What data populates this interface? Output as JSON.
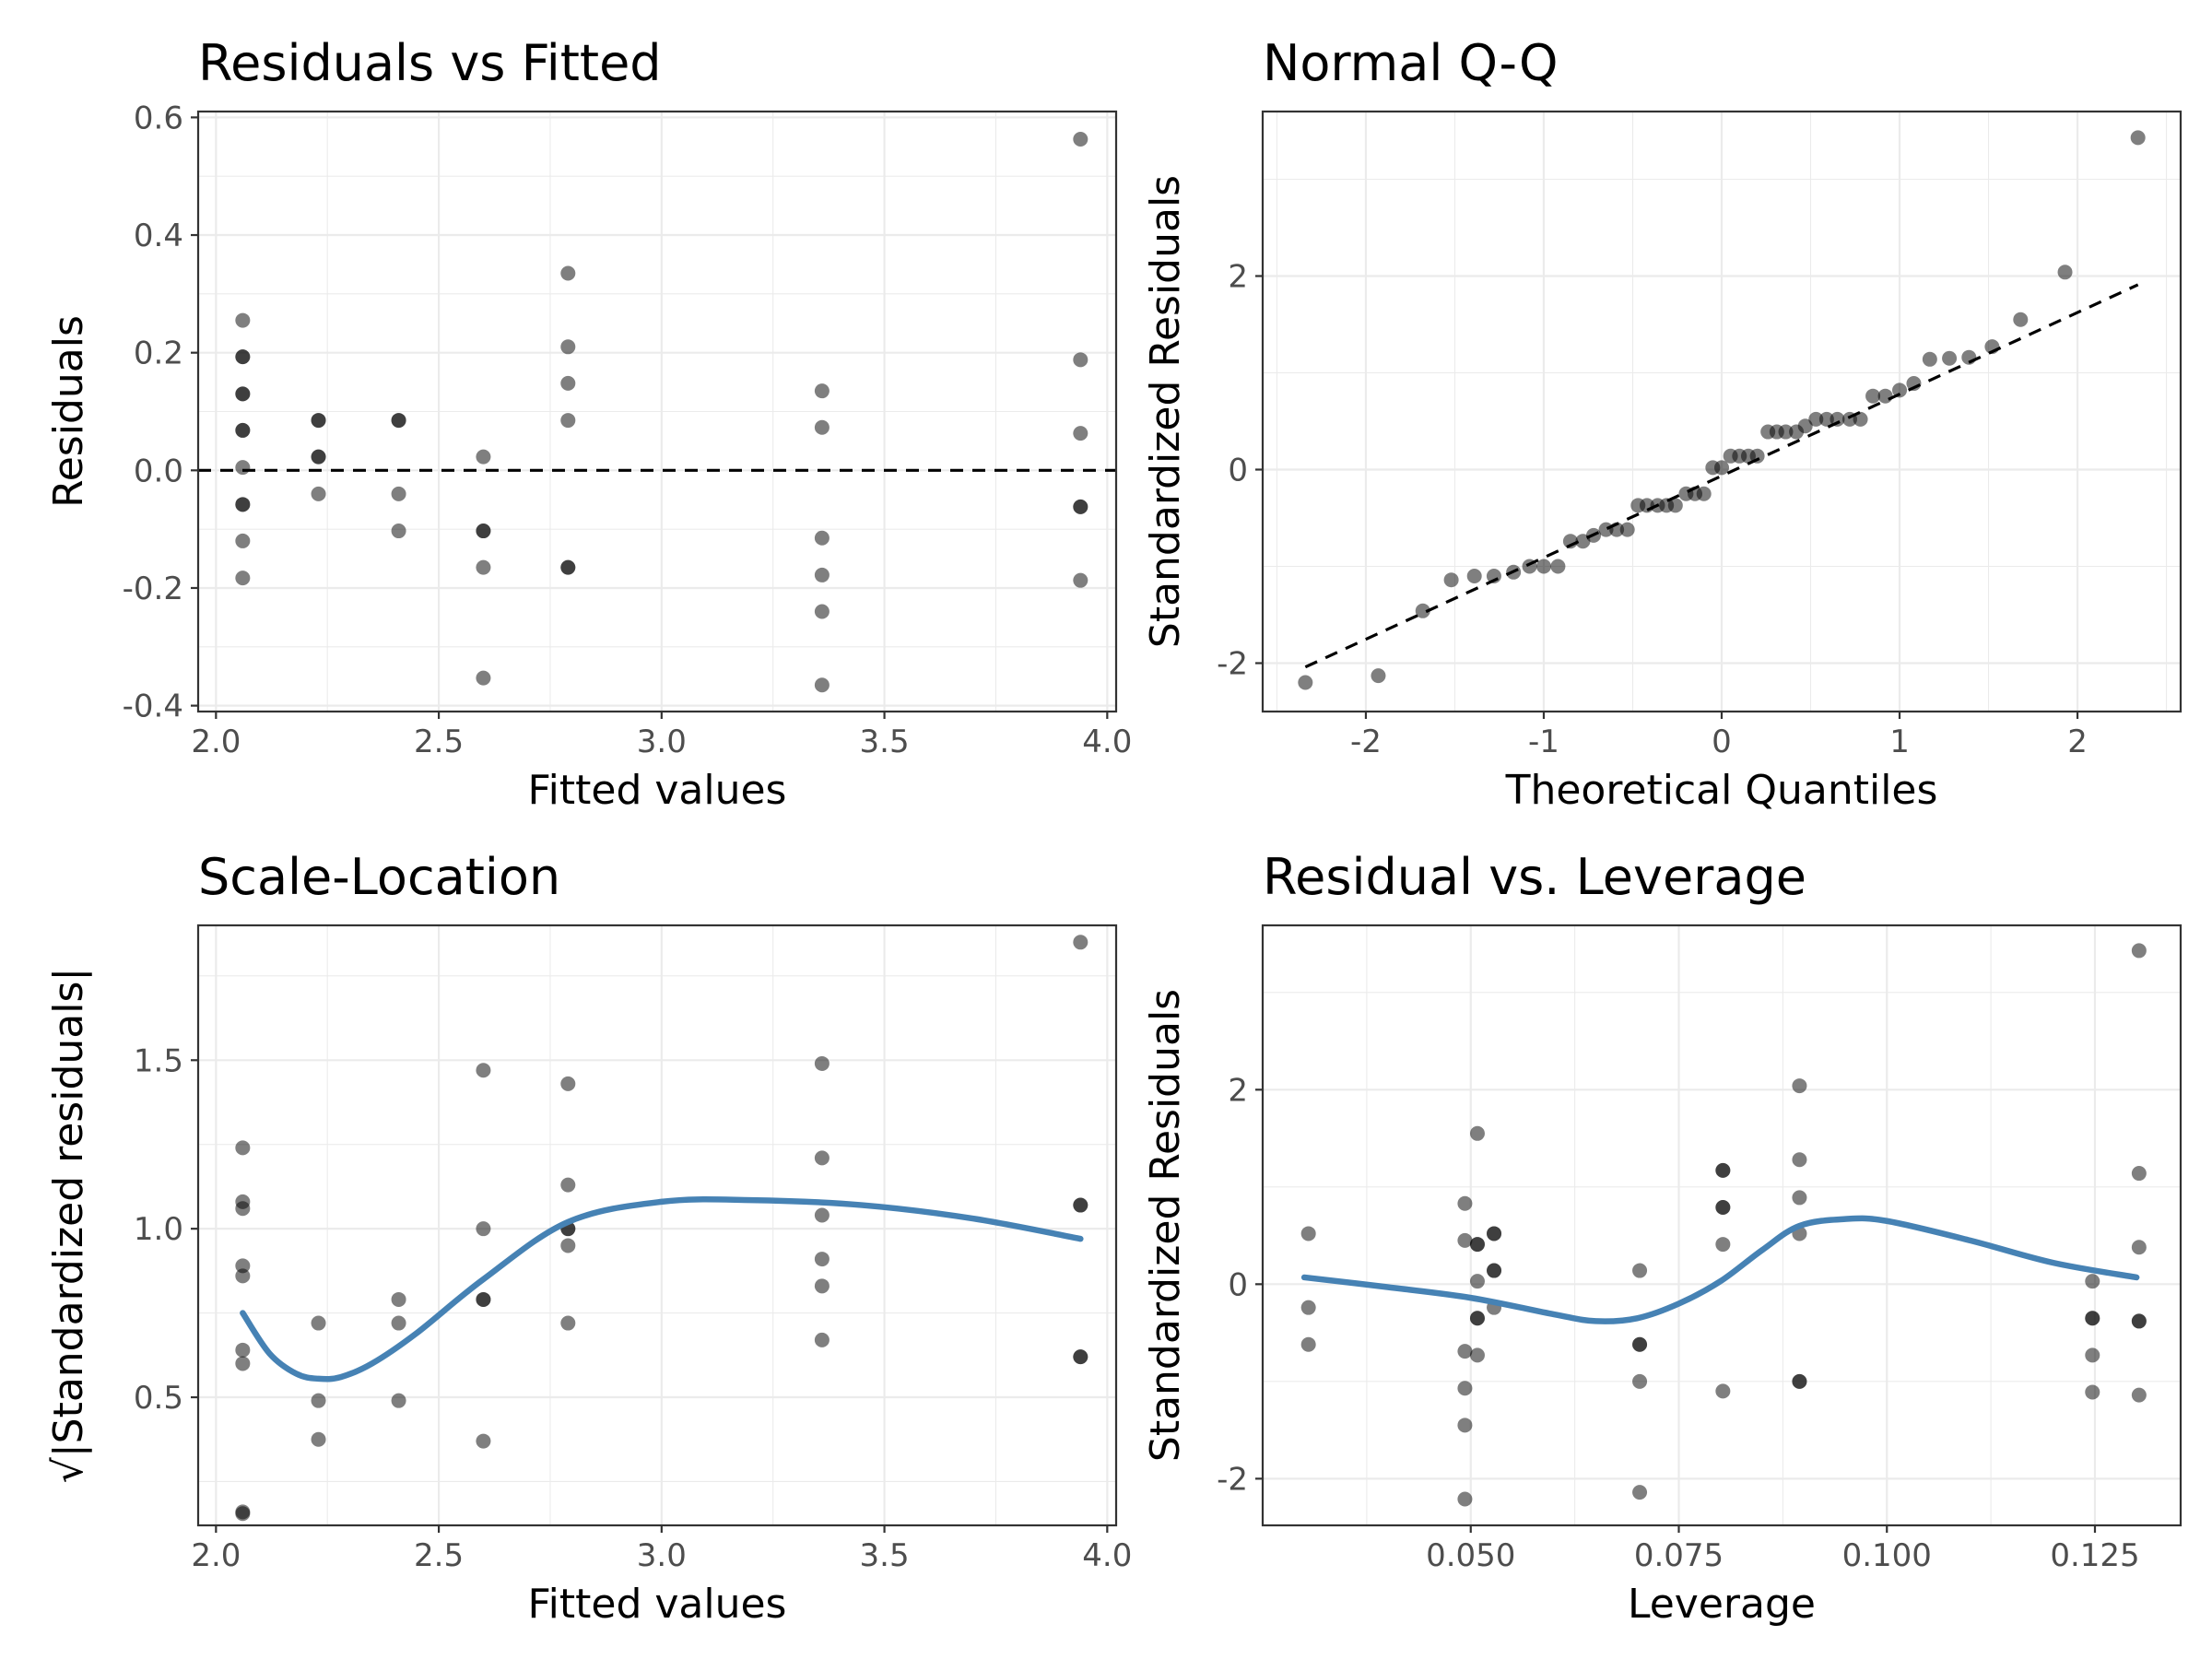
{
  "chart_data": [
    {
      "type": "scatter",
      "title": "Residuals vs Fitted",
      "xlabel": "Fitted values",
      "ylabel": "Residuals",
      "xlim": [
        1.96,
        4.02
      ],
      "ylim": [
        -0.41,
        0.61
      ],
      "xticks": [
        2.0,
        2.5,
        3.0,
        3.5,
        4.0
      ],
      "xtick_labels": [
        "2.0",
        "2.5",
        "3.0",
        "3.5",
        "4.0"
      ],
      "yticks": [
        -0.4,
        -0.2,
        0.0,
        0.2,
        0.4,
        0.6
      ],
      "ytick_labels": [
        "-0.4",
        "-0.2",
        "0.0",
        "0.2",
        "0.4",
        "0.6"
      ],
      "grid": true,
      "reference_line": {
        "style": "dashed",
        "y": 0
      },
      "points": [
        [
          2.06,
          0.255
        ],
        [
          2.06,
          0.193
        ],
        [
          2.06,
          0.193
        ],
        [
          2.06,
          0.13
        ],
        [
          2.06,
          0.13
        ],
        [
          2.06,
          0.068
        ],
        [
          2.06,
          0.068
        ],
        [
          2.06,
          0.005
        ],
        [
          2.06,
          -0.058
        ],
        [
          2.06,
          -0.058
        ],
        [
          2.06,
          -0.12
        ],
        [
          2.06,
          -0.183
        ],
        [
          2.23,
          0.085
        ],
        [
          2.23,
          0.085
        ],
        [
          2.23,
          0.023
        ],
        [
          2.23,
          0.023
        ],
        [
          2.23,
          -0.04
        ],
        [
          2.41,
          0.085
        ],
        [
          2.41,
          0.085
        ],
        [
          2.41,
          -0.04
        ],
        [
          2.41,
          -0.103
        ],
        [
          2.6,
          0.023
        ],
        [
          2.6,
          -0.103
        ],
        [
          2.6,
          -0.103
        ],
        [
          2.6,
          -0.165
        ],
        [
          2.6,
          -0.353
        ],
        [
          2.79,
          0.335
        ],
        [
          2.79,
          0.21
        ],
        [
          2.79,
          0.148
        ],
        [
          2.79,
          0.085
        ],
        [
          2.79,
          -0.165
        ],
        [
          2.79,
          -0.165
        ],
        [
          3.36,
          0.135
        ],
        [
          3.36,
          0.073
        ],
        [
          3.36,
          -0.115
        ],
        [
          3.36,
          -0.178
        ],
        [
          3.36,
          -0.24
        ],
        [
          3.36,
          -0.365
        ],
        [
          3.94,
          0.563
        ],
        [
          3.94,
          0.188
        ],
        [
          3.94,
          0.063
        ],
        [
          3.94,
          -0.062
        ],
        [
          3.94,
          -0.062
        ],
        [
          3.94,
          -0.187
        ]
      ]
    },
    {
      "type": "scatter",
      "title": "Normal Q-Q",
      "xlabel": "Theoretical Quantiles",
      "ylabel": "Standardized Residuals",
      "xlim": [
        -2.58,
        2.58
      ],
      "ylim": [
        -2.5,
        3.7
      ],
      "xticks": [
        -2,
        -1,
        0,
        1,
        2
      ],
      "xtick_labels": [
        "-2",
        "-1",
        "0",
        "1",
        "2"
      ],
      "yticks": [
        -2,
        0,
        2
      ],
      "ytick_labels": [
        "-2",
        "0",
        "2"
      ],
      "grid": true,
      "reference_line": {
        "style": "dashed",
        "x": [
          -2.34,
          2.34
        ],
        "y": [
          -2.04,
          1.91
        ]
      },
      "points": [
        [
          -2.34,
          -2.2
        ],
        [
          -1.93,
          -2.13
        ],
        [
          -1.68,
          -1.46
        ],
        [
          -1.52,
          -1.14
        ],
        [
          -1.39,
          -1.1
        ],
        [
          -1.28,
          -1.1
        ],
        [
          -1.17,
          -1.06
        ],
        [
          -1.08,
          -1.0
        ],
        [
          -1.0,
          -1.0
        ],
        [
          -0.92,
          -1.0
        ],
        [
          -0.85,
          -0.74
        ],
        [
          -0.78,
          -0.74
        ],
        [
          -0.72,
          -0.68
        ],
        [
          -0.65,
          -0.62
        ],
        [
          -0.59,
          -0.62
        ],
        [
          -0.53,
          -0.62
        ],
        [
          -0.47,
          -0.37
        ],
        [
          -0.42,
          -0.37
        ],
        [
          -0.36,
          -0.37
        ],
        [
          -0.31,
          -0.37
        ],
        [
          -0.26,
          -0.37
        ],
        [
          -0.2,
          -0.25
        ],
        [
          -0.15,
          -0.25
        ],
        [
          -0.1,
          -0.25
        ],
        [
          -0.05,
          0.02
        ],
        [
          0.0,
          0.02
        ],
        [
          0.05,
          0.14
        ],
        [
          0.1,
          0.14
        ],
        [
          0.15,
          0.14
        ],
        [
          0.2,
          0.14
        ],
        [
          0.26,
          0.39
        ],
        [
          0.31,
          0.39
        ],
        [
          0.36,
          0.39
        ],
        [
          0.42,
          0.39
        ],
        [
          0.47,
          0.45
        ],
        [
          0.53,
          0.52
        ],
        [
          0.59,
          0.52
        ],
        [
          0.65,
          0.52
        ],
        [
          0.72,
          0.52
        ],
        [
          0.78,
          0.52
        ],
        [
          0.85,
          0.76
        ],
        [
          0.92,
          0.76
        ],
        [
          1.0,
          0.82
        ],
        [
          1.08,
          0.89
        ],
        [
          1.17,
          1.14
        ],
        [
          1.28,
          1.15
        ],
        [
          1.39,
          1.16
        ],
        [
          1.52,
          1.27
        ],
        [
          1.68,
          1.55
        ],
        [
          1.93,
          2.04
        ],
        [
          2.34,
          3.43
        ]
      ]
    },
    {
      "type": "scatter",
      "title": "Scale-Location",
      "xlabel": "Fitted values",
      "ylabel": "√|Standardized residuals|",
      "xlim": [
        1.96,
        4.02
      ],
      "ylim": [
        0.12,
        1.9
      ],
      "xticks": [
        2.0,
        2.5,
        3.0,
        3.5,
        4.0
      ],
      "xtick_labels": [
        "2.0",
        "2.5",
        "3.0",
        "3.5",
        "4.0"
      ],
      "yticks": [
        0.5,
        1.0,
        1.5
      ],
      "ytick_labels": [
        "0.5",
        "1.0",
        "1.5"
      ],
      "grid": true,
      "smooth_line": {
        "color": "#4682B4",
        "x": [
          2.06,
          2.12,
          2.18,
          2.23,
          2.28,
          2.35,
          2.45,
          2.6,
          2.79,
          3.0,
          3.2,
          3.45,
          3.7,
          3.94
        ],
        "y": [
          0.75,
          0.63,
          0.57,
          0.555,
          0.56,
          0.6,
          0.69,
          0.85,
          1.02,
          1.08,
          1.085,
          1.07,
          1.03,
          0.97
        ]
      },
      "points": [
        [
          2.06,
          1.24
        ],
        [
          2.06,
          1.08
        ],
        [
          2.06,
          1.06
        ],
        [
          2.06,
          0.89
        ],
        [
          2.06,
          0.86
        ],
        [
          2.06,
          0.64
        ],
        [
          2.06,
          0.6
        ],
        [
          2.06,
          0.16
        ],
        [
          2.06,
          0.155
        ],
        [
          2.23,
          0.72
        ],
        [
          2.23,
          0.49
        ],
        [
          2.23,
          0.375
        ],
        [
          2.41,
          0.79
        ],
        [
          2.41,
          0.72
        ],
        [
          2.41,
          0.49
        ],
        [
          2.6,
          1.47
        ],
        [
          2.6,
          1.0
        ],
        [
          2.6,
          0.79
        ],
        [
          2.6,
          0.79
        ],
        [
          2.6,
          0.37
        ],
        [
          2.79,
          1.43
        ],
        [
          2.79,
          1.13
        ],
        [
          2.79,
          1.0
        ],
        [
          2.79,
          1.0
        ],
        [
          2.79,
          0.95
        ],
        [
          2.79,
          0.72
        ],
        [
          3.36,
          1.49
        ],
        [
          3.36,
          1.21
        ],
        [
          3.36,
          1.04
        ],
        [
          3.36,
          0.91
        ],
        [
          3.36,
          0.83
        ],
        [
          3.36,
          0.67
        ],
        [
          3.94,
          1.85
        ],
        [
          3.94,
          1.07
        ],
        [
          3.94,
          1.07
        ],
        [
          3.94,
          0.62
        ],
        [
          3.94,
          0.62
        ]
      ]
    },
    {
      "type": "scatter",
      "title": "Residual vs. Leverage",
      "xlabel": "Leverage",
      "ylabel": "Standardized Residuals",
      "xlim": [
        0.025,
        0.1353
      ],
      "ylim": [
        -2.48,
        3.69
      ],
      "xticks": [
        0.05,
        0.075,
        0.1,
        0.125
      ],
      "xtick_labels": [
        "0.050",
        "0.075",
        "0.100",
        "0.125"
      ],
      "yticks": [
        -2,
        0,
        2
      ],
      "ytick_labels": [
        "-2",
        "0",
        "2"
      ],
      "grid": true,
      "smooth_line": {
        "color": "#4682B4",
        "x": [
          0.03,
          0.04,
          0.05,
          0.06,
          0.065,
          0.07,
          0.075,
          0.08,
          0.085,
          0.0895,
          0.095,
          0.1,
          0.11,
          0.12,
          0.13
        ],
        "y": [
          0.07,
          -0.03,
          -0.14,
          -0.31,
          -0.38,
          -0.35,
          -0.2,
          0.03,
          0.35,
          0.6,
          0.67,
          0.65,
          0.45,
          0.22,
          0.07
        ]
      },
      "points": [
        [
          0.0305,
          0.52
        ],
        [
          0.0305,
          -0.24
        ],
        [
          0.0305,
          -0.62
        ],
        [
          0.0493,
          0.83
        ],
        [
          0.0493,
          0.45
        ],
        [
          0.0493,
          -0.69
        ],
        [
          0.0493,
          -1.07
        ],
        [
          0.0493,
          -1.45
        ],
        [
          0.0493,
          -2.21
        ],
        [
          0.0508,
          1.55
        ],
        [
          0.0508,
          0.41
        ],
        [
          0.0508,
          0.41
        ],
        [
          0.0508,
          0.03
        ],
        [
          0.0508,
          -0.35
        ],
        [
          0.0508,
          -0.35
        ],
        [
          0.0508,
          -0.73
        ],
        [
          0.0528,
          0.52
        ],
        [
          0.0528,
          0.52
        ],
        [
          0.0528,
          0.14
        ],
        [
          0.0528,
          0.14
        ],
        [
          0.0528,
          -0.24
        ],
        [
          0.0703,
          0.14
        ],
        [
          0.0703,
          -0.62
        ],
        [
          0.0703,
          -0.62
        ],
        [
          0.0703,
          -1.0
        ],
        [
          0.0703,
          -2.14
        ],
        [
          0.0803,
          1.17
        ],
        [
          0.0803,
          1.17
        ],
        [
          0.0803,
          0.79
        ],
        [
          0.0803,
          0.79
        ],
        [
          0.0803,
          0.41
        ],
        [
          0.0803,
          -1.1
        ],
        [
          0.0895,
          2.04
        ],
        [
          0.0895,
          1.28
        ],
        [
          0.0895,
          0.89
        ],
        [
          0.0895,
          0.52
        ],
        [
          0.0895,
          -1.0
        ],
        [
          0.0895,
          -1.0
        ],
        [
          0.1247,
          0.03
        ],
        [
          0.1247,
          -0.35
        ],
        [
          0.1247,
          -0.35
        ],
        [
          0.1247,
          -0.73
        ],
        [
          0.1247,
          -1.11
        ],
        [
          0.1303,
          3.43
        ],
        [
          0.1303,
          1.14
        ],
        [
          0.1303,
          0.38
        ],
        [
          0.1303,
          -0.38
        ],
        [
          0.1303,
          -0.38
        ],
        [
          0.1303,
          -1.14
        ]
      ]
    }
  ]
}
